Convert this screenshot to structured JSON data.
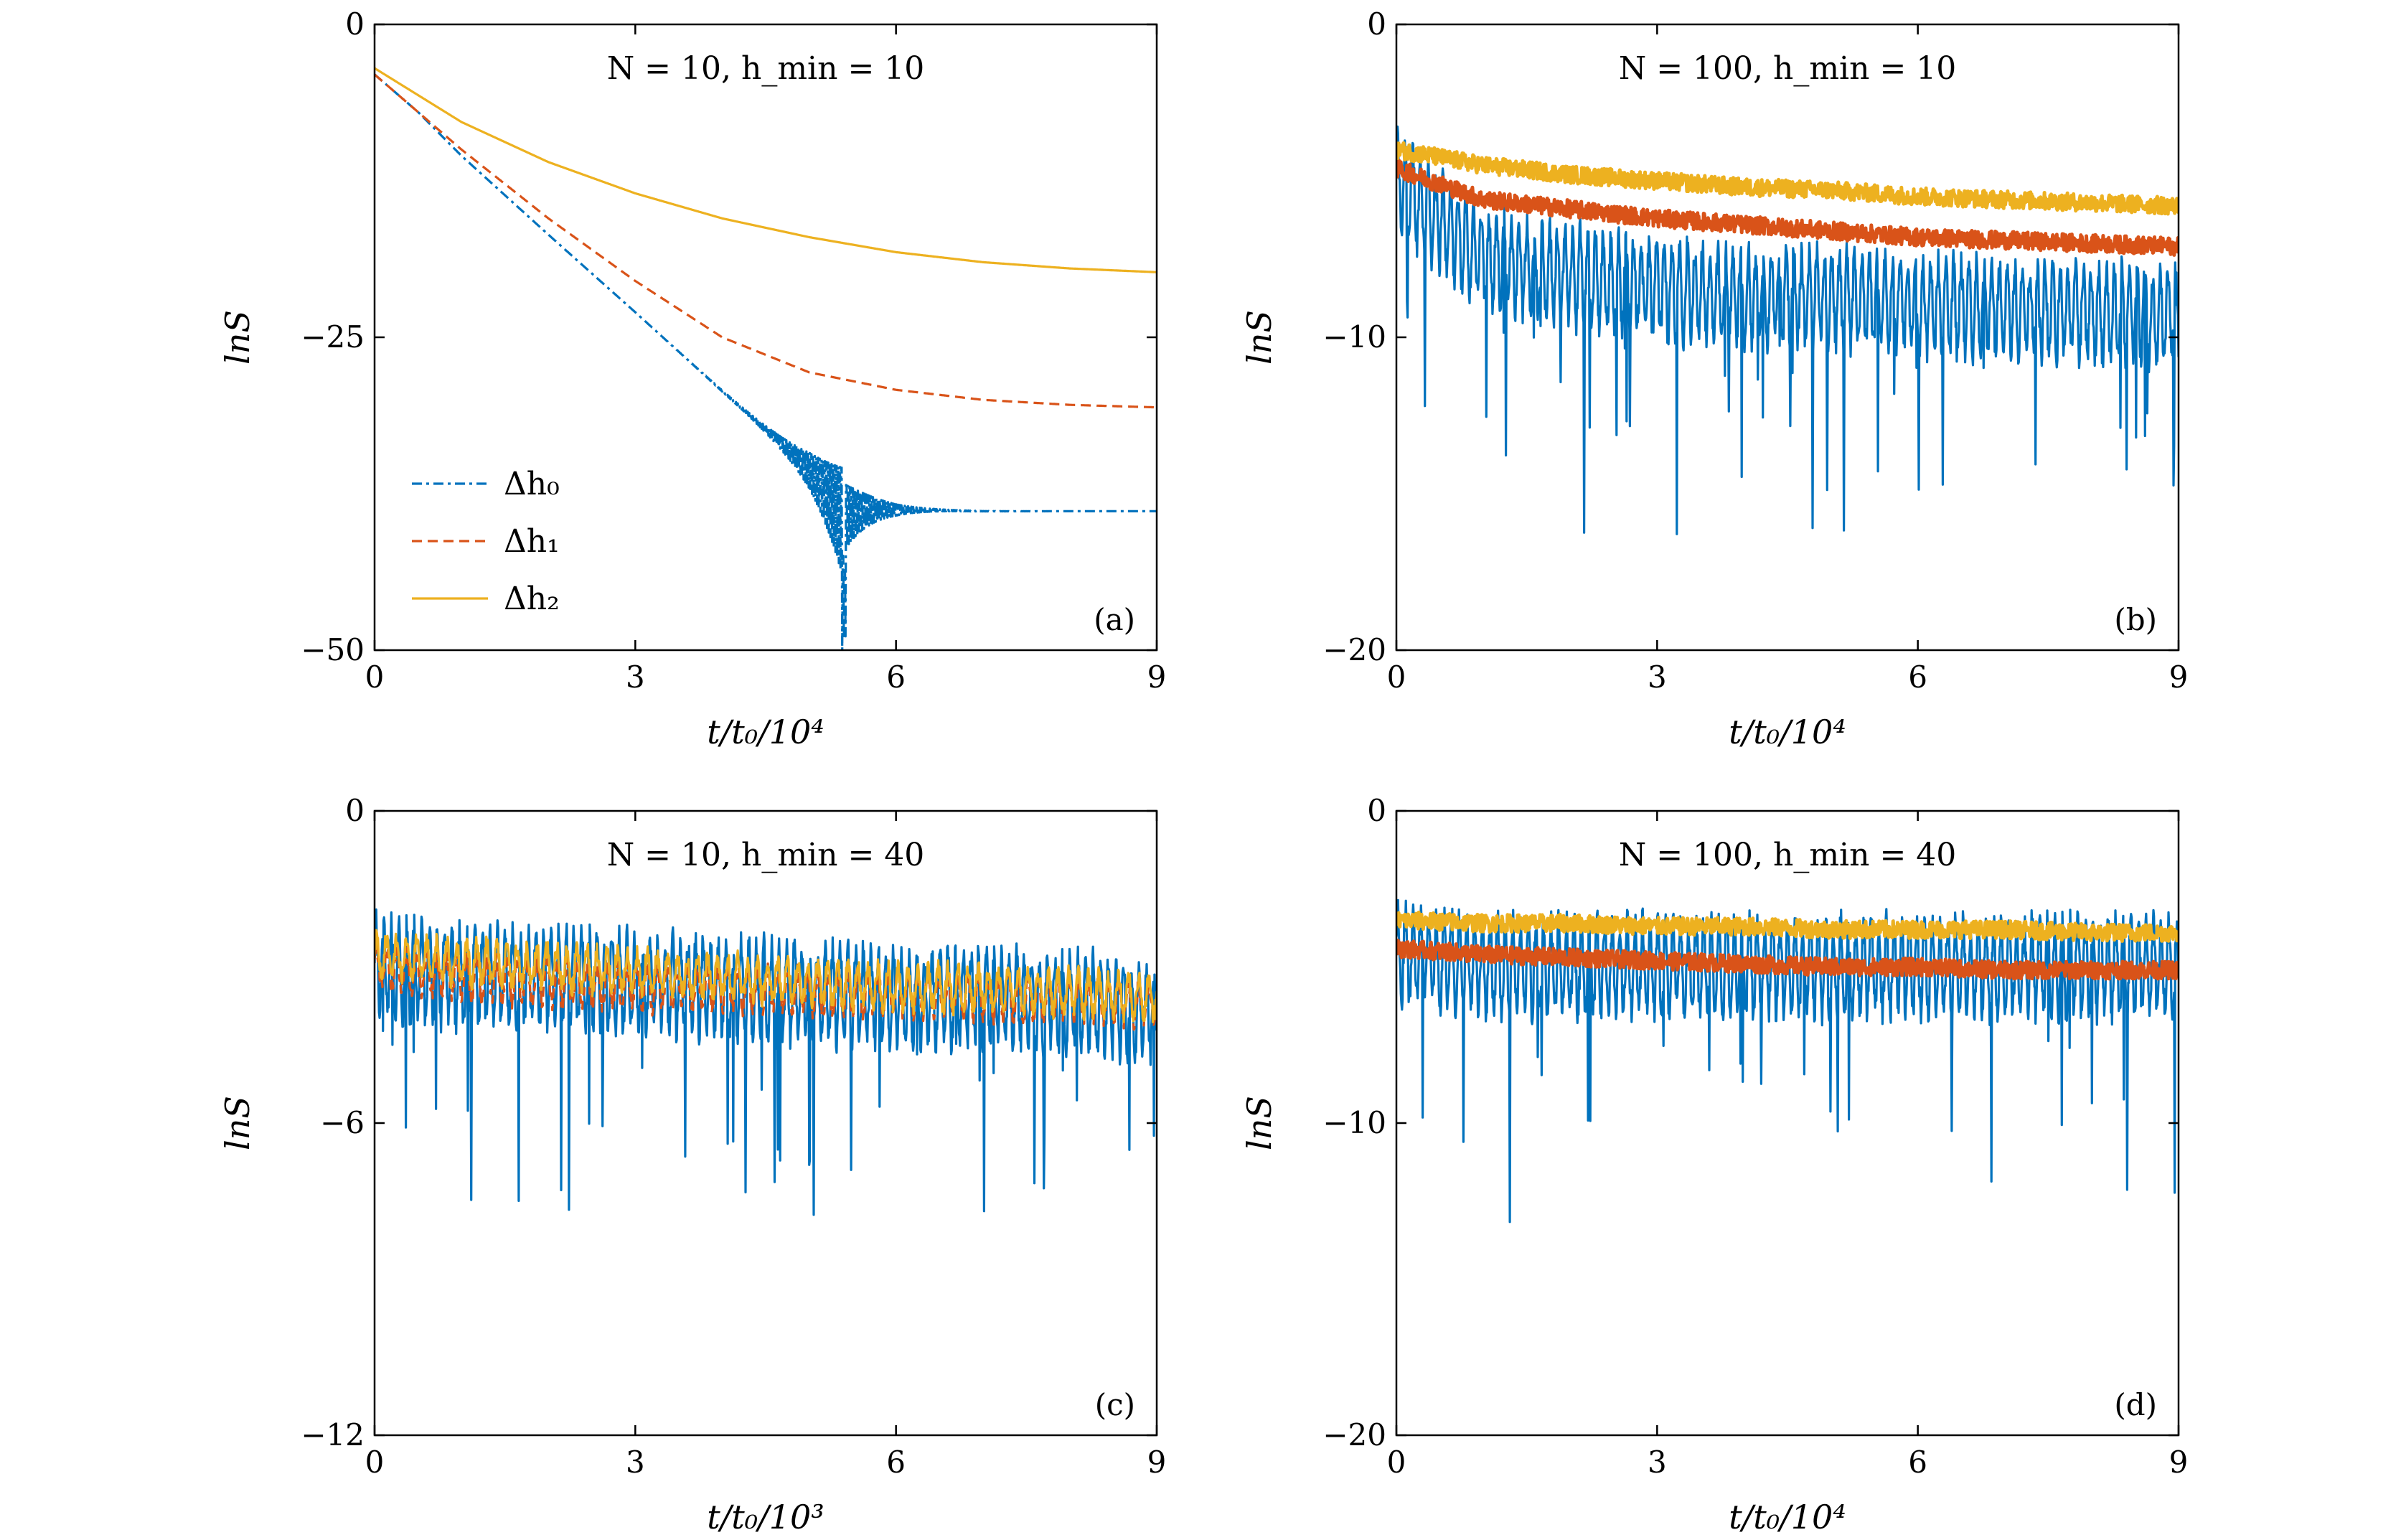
{
  "chart_data": [
    {
      "panel": "a",
      "type": "line",
      "title": "N = 10, h_min = 10",
      "panel_label": "(a)",
      "xlabel": "t/t₀/10⁴",
      "ylabel": "lnS",
      "xlim": [
        0,
        9
      ],
      "ylim": [
        -50,
        0
      ],
      "xticks": [
        "0",
        "3",
        "6",
        "9"
      ],
      "yticks": [
        "0",
        "−25",
        "−50"
      ],
      "legend": {
        "position": "lower-left",
        "entries": [
          "Δh₀",
          "Δh₁",
          "Δh₂"
        ]
      },
      "series": [
        {
          "name": "Δh₀",
          "color": "#0072BD",
          "style": "dash-dot",
          "noise": "resonance-dip",
          "x": [
            0,
            0.5,
            1,
            2,
            3,
            4,
            5,
            5.4,
            6,
            7,
            8,
            9
          ],
          "y": [
            -4,
            -7,
            -10.5,
            -16.8,
            -23,
            -29.3,
            -35.5,
            -38.5,
            -38.8,
            -38.9,
            -38.9,
            -38.9
          ]
        },
        {
          "name": "Δh₁",
          "color": "#D95319",
          "style": "dashed",
          "noise": "none",
          "x": [
            0,
            1,
            2,
            3,
            4,
            5,
            6,
            7,
            8,
            9
          ],
          "y": [
            -4,
            -10,
            -15.5,
            -20.5,
            -25,
            -27.8,
            -29.2,
            -30,
            -30.4,
            -30.6
          ]
        },
        {
          "name": "Δh₂",
          "color": "#EDB120",
          "style": "solid",
          "noise": "none",
          "x": [
            0,
            1,
            2,
            3,
            4,
            5,
            6,
            7,
            8,
            9
          ],
          "y": [
            -3.5,
            -7.8,
            -11,
            -13.5,
            -15.5,
            -17,
            -18.2,
            -19,
            -19.5,
            -19.8
          ]
        }
      ]
    },
    {
      "panel": "b",
      "type": "line",
      "title": "N = 100, h_min = 10",
      "panel_label": "(b)",
      "xlabel": "t/t₀/10⁴",
      "ylabel": "lnS",
      "xlim": [
        0,
        9
      ],
      "ylim": [
        -20,
        0
      ],
      "xticks": [
        "0",
        "3",
        "6",
        "9"
      ],
      "yticks": [
        "0",
        "−10",
        "−20"
      ],
      "series": [
        {
          "name": "Δh₀",
          "color": "#0072BD",
          "style": "dash-dot",
          "noise": "strong-oscillation",
          "x": [
            0,
            1,
            2,
            3,
            4,
            5,
            6,
            7,
            8,
            9
          ],
          "y": [
            -5,
            -7.5,
            -8,
            -8.5,
            -8.7,
            -8.8,
            -9,
            -9.1,
            -9.2,
            -9.3
          ]
        },
        {
          "name": "Δh₁",
          "color": "#D95319",
          "style": "dashed",
          "noise": "thick-band",
          "x": [
            0,
            1,
            2,
            3,
            4,
            5,
            6,
            7,
            8,
            9
          ],
          "y": [
            -4.6,
            -5.6,
            -5.9,
            -6.2,
            -6.4,
            -6.6,
            -6.8,
            -6.9,
            -7.0,
            -7.1
          ]
        },
        {
          "name": "Δh₂",
          "color": "#EDB120",
          "style": "solid",
          "noise": "thick-band",
          "x": [
            0,
            1,
            2,
            3,
            4,
            5,
            6,
            7,
            8,
            9
          ],
          "y": [
            -4,
            -4.5,
            -4.8,
            -5,
            -5.2,
            -5.3,
            -5.5,
            -5.6,
            -5.7,
            -5.8
          ]
        }
      ]
    },
    {
      "panel": "c",
      "type": "line",
      "title": "N = 10, h_min = 40",
      "panel_label": "(c)",
      "xlabel": "t/t₀/10³",
      "ylabel": "lnS",
      "xlim": [
        0,
        9
      ],
      "ylim": [
        -12,
        0
      ],
      "xticks": [
        "0",
        "3",
        "6",
        "9"
      ],
      "yticks": [
        "0",
        "−6",
        "−12"
      ],
      "series": [
        {
          "name": "Δh₀",
          "color": "#0072BD",
          "style": "dash-dot",
          "noise": "strong-oscillation",
          "x": [
            0,
            1,
            2,
            3,
            4,
            5,
            6,
            7,
            8,
            9
          ],
          "y": [
            -3,
            -3.2,
            -3.2,
            -3.3,
            -3.4,
            -3.5,
            -3.6,
            -3.6,
            -3.7,
            -3.8
          ]
        },
        {
          "name": "Δh₁",
          "color": "#D95319",
          "style": "dashed",
          "noise": "moderate",
          "x": [
            0,
            1,
            2,
            3,
            4,
            5,
            6,
            7,
            8,
            9
          ],
          "y": [
            -3,
            -3.2,
            -3.3,
            -3.4,
            -3.4,
            -3.5,
            -3.5,
            -3.6,
            -3.6,
            -3.7
          ]
        },
        {
          "name": "Δh₂",
          "color": "#EDB120",
          "style": "solid",
          "noise": "moderate",
          "x": [
            0,
            1,
            2,
            3,
            4,
            5,
            6,
            7,
            8,
            9
          ],
          "y": [
            -2.8,
            -2.9,
            -3.0,
            -3.1,
            -3.2,
            -3.3,
            -3.4,
            -3.4,
            -3.5,
            -3.6
          ]
        }
      ]
    },
    {
      "panel": "d",
      "type": "line",
      "title": "N = 100, h_min = 40",
      "panel_label": "(d)",
      "xlabel": "t/t₀/10⁴",
      "ylabel": "lnS",
      "xlim": [
        0,
        9
      ],
      "ylim": [
        -20,
        0
      ],
      "xticks": [
        "0",
        "3",
        "6",
        "9"
      ],
      "yticks": [
        "0",
        "−10",
        "−20"
      ],
      "series": [
        {
          "name": "Δh₀",
          "color": "#0072BD",
          "style": "dash-dot",
          "noise": "strong-oscillation",
          "x": [
            0,
            1,
            2,
            3,
            4,
            5,
            6,
            7,
            8,
            9
          ],
          "y": [
            -4.5,
            -5,
            -5,
            -5,
            -5,
            -5,
            -5,
            -5,
            -5,
            -5
          ]
        },
        {
          "name": "Δh₁",
          "color": "#D95319",
          "style": "dashed",
          "noise": "thick-band",
          "x": [
            0,
            1,
            2,
            3,
            4,
            5,
            6,
            7,
            8,
            9
          ],
          "y": [
            -4.4,
            -4.6,
            -4.7,
            -4.8,
            -4.9,
            -5.0,
            -5.0,
            -5.1,
            -5.1,
            -5.1
          ]
        },
        {
          "name": "Δh₂",
          "color": "#EDB120",
          "style": "solid",
          "noise": "thick-band",
          "x": [
            0,
            1,
            2,
            3,
            4,
            5,
            6,
            7,
            8,
            9
          ],
          "y": [
            -3.5,
            -3.6,
            -3.6,
            -3.7,
            -3.7,
            -3.8,
            -3.8,
            -3.8,
            -3.9,
            -3.9
          ]
        }
      ]
    }
  ]
}
